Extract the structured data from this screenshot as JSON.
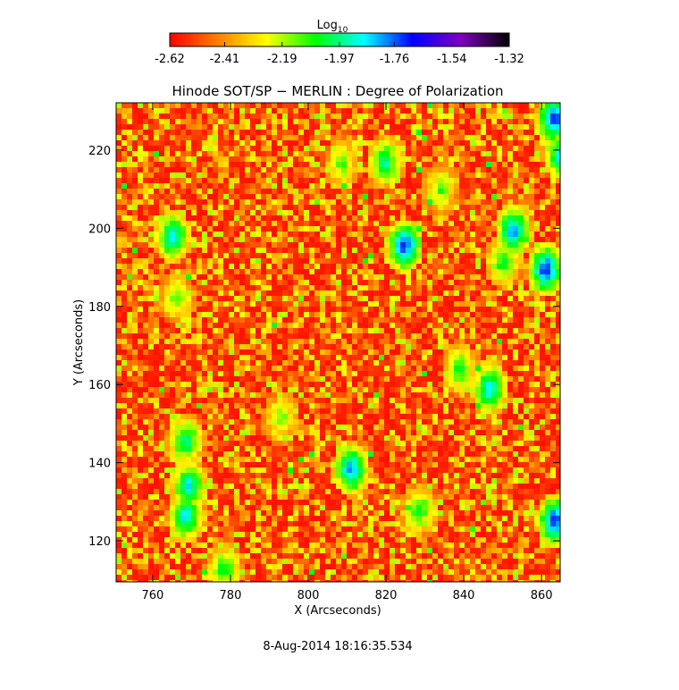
{
  "chart_data": {
    "type": "image",
    "title": "Hinode SOT/SP − MERLIN : Degree of Polarization",
    "xlabel": "X (Arcseconds)",
    "ylabel": "Y (Arcseconds)",
    "footer": "8-Aug-2014 18:16:35.534",
    "xlim": [
      750.6,
      864.8
    ],
    "xticks": [
      760,
      780,
      800,
      820,
      840,
      860
    ],
    "ylim": [
      109.5,
      232.1
    ],
    "yticks": [
      120,
      140,
      160,
      180,
      200,
      220
    ],
    "colorbar": {
      "label": "Log",
      "label_sub": "10",
      "lim": [
        -2.62,
        -1.32
      ],
      "ticks": [
        -2.62,
        -2.41,
        -2.19,
        -1.97,
        -1.76,
        -1.54,
        -1.32
      ],
      "colormap": [
        "#ff0000",
        "#ff8000",
        "#ffff00",
        "#00ff00",
        "#00ffff",
        "#0000ff",
        "#8000c0",
        "#000000"
      ]
    }
  }
}
